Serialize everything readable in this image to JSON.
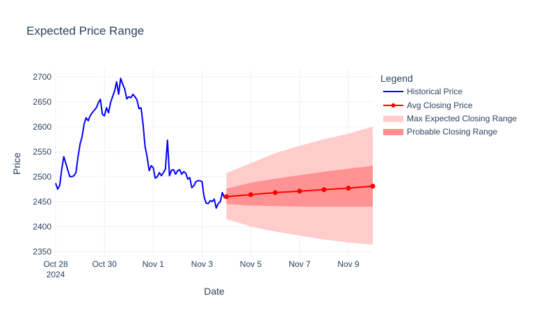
{
  "chart_data": {
    "type": "line",
    "title": "Expected Price Range",
    "xlabel": "Date",
    "ylabel": "Price",
    "xlim": [
      "2024-10-28",
      "2024-11-10"
    ],
    "ylim": [
      2340,
      2715
    ],
    "x_ticks": [
      {
        "date": "2024-10-28",
        "label": "Oct 28",
        "sublabel": "2024"
      },
      {
        "date": "2024-10-30",
        "label": "Oct 30"
      },
      {
        "date": "2024-11-01",
        "label": "Nov 1"
      },
      {
        "date": "2024-11-03",
        "label": "Nov 3"
      },
      {
        "date": "2024-11-05",
        "label": "Nov 5"
      },
      {
        "date": "2024-11-07",
        "label": "Nov 7"
      },
      {
        "date": "2024-11-09",
        "label": "Nov 9"
      }
    ],
    "y_ticks": [
      2350,
      2400,
      2450,
      2500,
      2550,
      2600,
      2650,
      2700
    ],
    "grid": true,
    "legend": {
      "title": "Legend",
      "position": "right"
    },
    "series": [
      {
        "name": "Historical Price",
        "kind": "line",
        "color": "#0000ff",
        "x": [
          "2024-10-28 00:00",
          "2024-10-28 02:00",
          "2024-10-28 04:00",
          "2024-10-28 06:00",
          "2024-10-28 08:00",
          "2024-10-28 10:00",
          "2024-10-28 12:00",
          "2024-10-28 14:00",
          "2024-10-28 16:00",
          "2024-10-28 18:00",
          "2024-10-28 20:00",
          "2024-10-28 22:00",
          "2024-10-29 00:00",
          "2024-10-29 02:00",
          "2024-10-29 04:00",
          "2024-10-29 06:00",
          "2024-10-29 08:00",
          "2024-10-29 10:00",
          "2024-10-29 12:00",
          "2024-10-29 14:00",
          "2024-10-29 16:00",
          "2024-10-29 18:00",
          "2024-10-29 20:00",
          "2024-10-29 22:00",
          "2024-10-30 00:00",
          "2024-10-30 02:00",
          "2024-10-30 04:00",
          "2024-10-30 06:00",
          "2024-10-30 08:00",
          "2024-10-30 10:00",
          "2024-10-30 12:00",
          "2024-10-30 14:00",
          "2024-10-30 16:00",
          "2024-10-30 18:00",
          "2024-10-30 20:00",
          "2024-10-30 22:00",
          "2024-10-31 00:00",
          "2024-10-31 02:00",
          "2024-10-31 04:00",
          "2024-10-31 06:00",
          "2024-10-31 08:00",
          "2024-10-31 10:00",
          "2024-10-31 12:00",
          "2024-10-31 14:00",
          "2024-10-31 16:00",
          "2024-10-31 18:00",
          "2024-10-31 20:00",
          "2024-10-31 22:00",
          "2024-11-01 00:00",
          "2024-11-01 02:00",
          "2024-11-01 04:00",
          "2024-11-01 06:00",
          "2024-11-01 08:00",
          "2024-11-01 10:00",
          "2024-11-01 12:00",
          "2024-11-01 14:00",
          "2024-11-01 16:00",
          "2024-11-01 18:00",
          "2024-11-01 20:00",
          "2024-11-01 22:00",
          "2024-11-02 00:00",
          "2024-11-02 02:00",
          "2024-11-02 04:00",
          "2024-11-02 06:00",
          "2024-11-02 08:00",
          "2024-11-02 10:00",
          "2024-11-02 12:00",
          "2024-11-02 14:00",
          "2024-11-02 16:00",
          "2024-11-02 18:00",
          "2024-11-02 20:00",
          "2024-11-02 22:00",
          "2024-11-03 00:00",
          "2024-11-03 02:00",
          "2024-11-03 04:00",
          "2024-11-03 06:00",
          "2024-11-03 08:00",
          "2024-11-03 10:00",
          "2024-11-03 12:00",
          "2024-11-03 14:00",
          "2024-11-03 16:00",
          "2024-11-03 18:00",
          "2024-11-03 20:00",
          "2024-11-03 22:00",
          "2024-11-04 00:00"
        ],
        "y": [
          2487,
          2475,
          2482,
          2515,
          2540,
          2527,
          2513,
          2500,
          2500,
          2502,
          2508,
          2540,
          2565,
          2580,
          2605,
          2618,
          2612,
          2622,
          2628,
          2633,
          2638,
          2648,
          2655,
          2625,
          2622,
          2638,
          2628,
          2648,
          2660,
          2672,
          2690,
          2665,
          2697,
          2685,
          2675,
          2656,
          2660,
          2658,
          2665,
          2660,
          2654,
          2636,
          2638,
          2605,
          2560,
          2540,
          2512,
          2522,
          2518,
          2497,
          2500,
          2508,
          2502,
          2508,
          2515,
          2573,
          2502,
          2513,
          2514,
          2505,
          2512,
          2514,
          2505,
          2510,
          2507,
          2495,
          2498,
          2478,
          2482,
          2490,
          2492,
          2492,
          2490,
          2460,
          2447,
          2446,
          2452,
          2450,
          2455,
          2437,
          2446,
          2450,
          2468,
          2458,
          2460
        ]
      },
      {
        "name": "Avg Closing Price",
        "kind": "line+markers",
        "color": "#ff0000",
        "x": [
          "2024-11-04",
          "2024-11-05",
          "2024-11-06",
          "2024-11-07",
          "2024-11-08",
          "2024-11-09",
          "2024-11-10"
        ],
        "y": [
          2460,
          2464,
          2468,
          2471,
          2474,
          2477,
          2481
        ]
      },
      {
        "name": "Max Expected Closing Range",
        "kind": "band",
        "color": "#ffcccc",
        "x": [
          "2024-11-04",
          "2024-11-05",
          "2024-11-06",
          "2024-11-07",
          "2024-11-08",
          "2024-11-09",
          "2024-11-10"
        ],
        "upper": [
          2507,
          2527,
          2547,
          2562,
          2575,
          2586,
          2600
        ],
        "lower": [
          2415,
          2400,
          2390,
          2382,
          2374,
          2368,
          2364
        ]
      },
      {
        "name": "Probable Closing Range",
        "kind": "band",
        "color": "#ff8080",
        "x": [
          "2024-11-04",
          "2024-11-05",
          "2024-11-06",
          "2024-11-07",
          "2024-11-08",
          "2024-11-09",
          "2024-11-10"
        ],
        "upper": [
          2476,
          2488,
          2496,
          2503,
          2510,
          2516,
          2522
        ],
        "lower": [
          2445,
          2442,
          2441,
          2440,
          2440,
          2440,
          2440
        ]
      }
    ]
  }
}
